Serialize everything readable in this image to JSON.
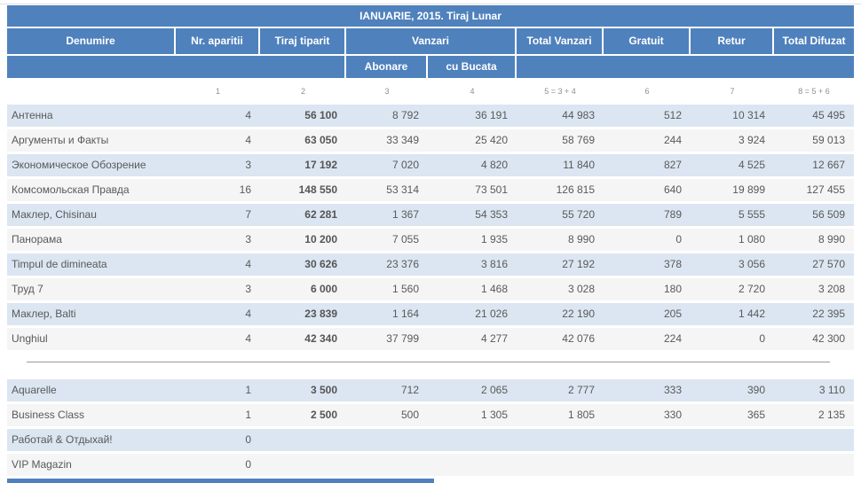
{
  "title": "IANUARIE, 2015. Tiraj Lunar",
  "colors": {
    "header_blue": "#4f81bd",
    "stripe_blue": "#dce6f2",
    "stripe_plain": "#f5f5f5",
    "text_body": "#595959",
    "text_header": "#ffffff",
    "text_index": "#8f8f8f",
    "separator_line": "#999999"
  },
  "header": {
    "denumire": "Denumire",
    "nr_aparitii": "Nr. aparitii",
    "tiraj_tiparit": "Tiraj tiparit",
    "vanzari": "Vanzari",
    "abonare": "Abonare",
    "cu_bucata": "cu Bucata",
    "total_vanzari": "Total Vanzari",
    "gratuit": "Gratuit",
    "retur": "Retur",
    "total_difuzat": "Total Difuzat"
  },
  "index_row": [
    "1",
    "2",
    "3",
    "4",
    "5 = 3 + 4",
    "6",
    "7",
    "8 = 5 + 6"
  ],
  "sections": {
    "main": {
      "rows": [
        {
          "name": "Антенна",
          "values": [
            "4",
            "56 100",
            "8 792",
            "36 191",
            "44 983",
            "512",
            "10 314",
            "45 495"
          ]
        },
        {
          "name": "Аргументы и Факты",
          "values": [
            "4",
            "63 050",
            "33 349",
            "25 420",
            "58 769",
            "244",
            "3 924",
            "59 013"
          ]
        },
        {
          "name": "Экономическое Обозрение",
          "values": [
            "3",
            "17 192",
            "7 020",
            "4 820",
            "11 840",
            "827",
            "4 525",
            "12 667"
          ]
        },
        {
          "name": "Комсомольская Правда",
          "values": [
            "16",
            "148 550",
            "53 314",
            "73 501",
            "126 815",
            "640",
            "19 899",
            "127 455"
          ]
        },
        {
          "name": "Маклер, Chisinau",
          "values": [
            "7",
            "62 281",
            "1 367",
            "54 353",
            "55 720",
            "789",
            "5 555",
            "56 509"
          ]
        },
        {
          "name": "Панорама",
          "values": [
            "3",
            "10 200",
            "7 055",
            "1 935",
            "8 990",
            "0",
            "1 080",
            "8 990"
          ]
        },
        {
          "name": "Timpul de dimineata",
          "values": [
            "4",
            "30 626",
            "23 376",
            "3 816",
            "27 192",
            "378",
            "3 056",
            "27 570"
          ]
        },
        {
          "name": "Труд 7",
          "values": [
            "3",
            "6 000",
            "1 560",
            "1 468",
            "3 028",
            "180",
            "2 720",
            "3 208"
          ]
        },
        {
          "name": "Маклер, Balti",
          "values": [
            "4",
            "23 839",
            "1 164",
            "21 026",
            "22 190",
            "205",
            "1 442",
            "22 395"
          ]
        },
        {
          "name": "Unghiul",
          "values": [
            "4",
            "42 340",
            "37 799",
            "4 277",
            "42 076",
            "224",
            "0",
            "42 300"
          ]
        }
      ]
    },
    "secondary": {
      "rows": [
        {
          "name": "Aquarelle",
          "values": [
            "1",
            "3 500",
            "712",
            "2 065",
            "2 777",
            "333",
            "390",
            "3 110"
          ]
        },
        {
          "name": "Business Class",
          "values": [
            "1",
            "2 500",
            "500",
            "1 305",
            "1 805",
            "330",
            "365",
            "2 135"
          ]
        },
        {
          "name": "Работай & Отдыхай!",
          "values": [
            "0",
            "",
            "",
            "",
            "",
            "",
            "",
            ""
          ]
        },
        {
          "name": "VIP Magazin",
          "values": [
            "0",
            "",
            "",
            "",
            "",
            "",
            "",
            ""
          ]
        }
      ]
    }
  }
}
